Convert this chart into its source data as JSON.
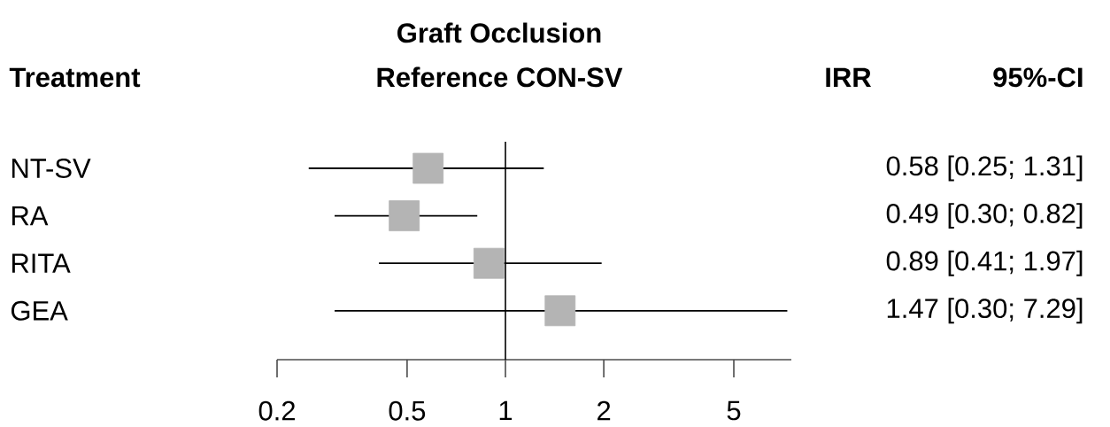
{
  "chart_data": {
    "type": "scatter",
    "orientation": "horizontal",
    "title": "Graft Occlusion",
    "subtitle": "Reference CON-SV",
    "ylabel": "Treatment",
    "annotations": [
      "IRR",
      "95%-CI"
    ],
    "categories": [
      "NT-SV",
      "RA",
      "RITA",
      "GEA"
    ],
    "values": [
      0.58,
      0.49,
      0.89,
      1.47
    ],
    "errors": [
      [
        0.25,
        1.31
      ],
      [
        0.3,
        0.82
      ],
      [
        0.41,
        1.97
      ],
      [
        0.3,
        7.29
      ]
    ],
    "value_labels": [
      "0.58 [0.25; 1.31]",
      "0.49 [0.30; 0.82]",
      "0.89 [0.41; 1.97]",
      "1.47 [0.30; 7.29]"
    ],
    "color": "#b4b4b4",
    "marker": "square",
    "log": "x",
    "xlim": [
      0.2,
      7.5
    ],
    "xticks": [
      0.2,
      0.5,
      1,
      2,
      5
    ],
    "ref_lines": [
      {
        "axis": "x",
        "value": 1
      }
    ],
    "grid": false
  }
}
